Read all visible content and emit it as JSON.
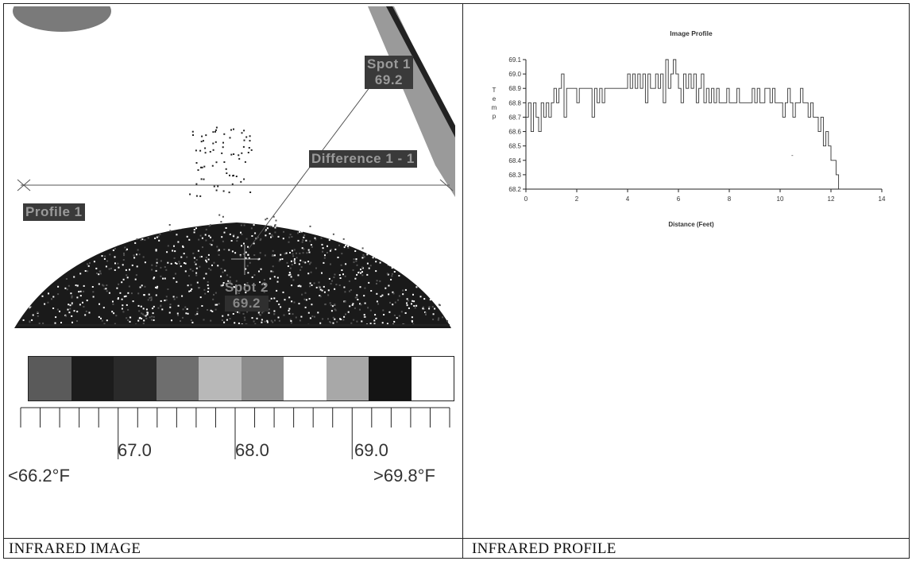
{
  "captions": {
    "left": "INFRARED IMAGE",
    "right": "INFRARED PROFILE"
  },
  "ir_image": {
    "spot1": {
      "name": "Spot 1",
      "value": "69.2"
    },
    "spot2": {
      "name": "Spot 2",
      "value": "69.2"
    },
    "difference_label": "Difference 1 - 1",
    "profile_label": "Profile 1",
    "palette_colors": [
      "#5a5a5a",
      "#1c1c1c",
      "#2a2a2a",
      "#6e6e6e",
      "#b8b8b8",
      "#8c8c8c",
      "#ffffff",
      "#a8a8a8",
      "#141414",
      "#ffffff"
    ],
    "scale": {
      "min_label": "<66.2°F",
      "max_label": ">69.8°F",
      "major_ticks": [
        "67.0",
        "68.0",
        "69.0"
      ]
    }
  },
  "chart_data": {
    "type": "line",
    "title": "Image Profile",
    "xlabel": "Distance (Feet)",
    "ylabel": "Temp",
    "xlim": [
      0,
      14
    ],
    "ylim": [
      68.2,
      69.1
    ],
    "x_ticks": [
      "0",
      "2",
      "4",
      "6",
      "8",
      "10",
      "12",
      "14"
    ],
    "y_ticks": [
      "69.1",
      "69.0",
      "68.9",
      "68.8",
      "68.7",
      "68.6",
      "68.5",
      "68.4",
      "68.3",
      "68.2"
    ],
    "series": [
      {
        "x": [
          0.0,
          0.1,
          0.2,
          0.3,
          0.4,
          0.5,
          0.6,
          0.7,
          0.8,
          0.9,
          1.0,
          1.1,
          1.2,
          1.3,
          1.4,
          1.5,
          1.6,
          1.7,
          1.8,
          1.9,
          2.0,
          2.1,
          2.2,
          2.3,
          2.4,
          2.5,
          2.6,
          2.7,
          2.8,
          2.9,
          3.0,
          3.1,
          3.2,
          3.3,
          3.4,
          3.5,
          3.6,
          3.7,
          3.8,
          3.9,
          4.0,
          4.1,
          4.2,
          4.3,
          4.4,
          4.5,
          4.6,
          4.7,
          4.8,
          4.9,
          5.0,
          5.1,
          5.2,
          5.3,
          5.4,
          5.5,
          5.6,
          5.7,
          5.8,
          5.9,
          6.0,
          6.1,
          6.2,
          6.3,
          6.4,
          6.5,
          6.6,
          6.7,
          6.8,
          6.9,
          7.0,
          7.1,
          7.2,
          7.3,
          7.4,
          7.5,
          7.6,
          7.7,
          7.8,
          7.9,
          8.0,
          8.1,
          8.2,
          8.3,
          8.4,
          8.5,
          8.6,
          8.7,
          8.8,
          8.9,
          9.0,
          9.1,
          9.2,
          9.3,
          9.4,
          9.5,
          9.6,
          9.7,
          9.8,
          9.9,
          10.0,
          10.1,
          10.2,
          10.3,
          10.4,
          10.5,
          10.6,
          10.7,
          10.8,
          10.9,
          11.0,
          11.1,
          11.2,
          11.3,
          11.4,
          11.5,
          11.6,
          11.7,
          11.8,
          11.9,
          12.0,
          12.1,
          12.2,
          12.3
        ],
        "y": [
          68.7,
          68.8,
          68.6,
          68.8,
          68.7,
          68.6,
          68.8,
          68.7,
          68.8,
          68.7,
          68.8,
          68.9,
          68.8,
          68.9,
          69.0,
          68.7,
          68.9,
          68.9,
          68.9,
          68.9,
          68.8,
          68.9,
          68.9,
          68.9,
          68.9,
          68.9,
          68.7,
          68.9,
          68.8,
          68.9,
          68.8,
          68.9,
          68.9,
          68.9,
          68.9,
          68.9,
          68.9,
          68.9,
          68.9,
          68.9,
          69.0,
          68.9,
          69.0,
          68.9,
          69.0,
          68.9,
          69.0,
          68.8,
          69.0,
          68.9,
          68.9,
          69.0,
          68.9,
          69.0,
          68.8,
          69.1,
          68.9,
          69.0,
          69.1,
          69.0,
          68.9,
          68.8,
          69.0,
          68.9,
          69.0,
          68.9,
          69.0,
          68.8,
          68.9,
          69.0,
          68.8,
          68.9,
          68.8,
          68.9,
          68.8,
          68.9,
          68.8,
          68.8,
          68.8,
          68.9,
          68.8,
          68.8,
          68.8,
          68.9,
          68.8,
          68.8,
          68.8,
          68.8,
          68.8,
          68.9,
          68.8,
          68.9,
          68.8,
          68.8,
          68.9,
          68.9,
          68.8,
          68.9,
          68.8,
          68.8,
          68.8,
          68.7,
          68.8,
          68.9,
          68.8,
          68.7,
          68.8,
          68.8,
          68.9,
          68.8,
          68.8,
          68.7,
          68.8,
          68.7,
          68.7,
          68.6,
          68.7,
          68.5,
          68.6,
          68.5,
          68.4,
          68.4,
          68.3,
          68.2
        ]
      }
    ],
    "annotation": "-",
    "grid": false
  }
}
